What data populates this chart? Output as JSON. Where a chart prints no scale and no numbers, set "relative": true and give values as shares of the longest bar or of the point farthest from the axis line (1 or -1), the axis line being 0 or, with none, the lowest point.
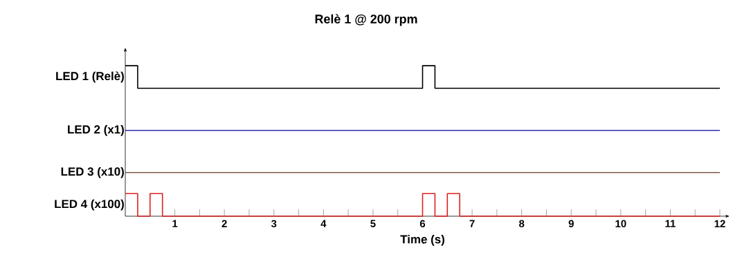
{
  "chart_data": {
    "type": "step",
    "title": "Relè 1 @ 200 rpm",
    "xlabel": "Time (s)",
    "relative": true,
    "xlim": [
      0,
      12
    ],
    "xticks": [
      {
        "value": 0.5,
        "label": null
      },
      1,
      {
        "value": 1.5,
        "label": null
      },
      2,
      {
        "value": 2.5,
        "label": null
      },
      3,
      {
        "value": 3.5,
        "label": null
      },
      4,
      {
        "value": 4.5,
        "label": null
      },
      5,
      {
        "value": 5.5,
        "label": null
      },
      6,
      {
        "value": 6.5,
        "label": null
      },
      7,
      {
        "value": 7.5,
        "label": null
      },
      8,
      {
        "value": 8.5,
        "label": null
      },
      9,
      {
        "value": 9.5,
        "label": null
      },
      10,
      {
        "value": 10.5,
        "label": null
      },
      11,
      {
        "value": 11.5,
        "label": null
      },
      12
    ],
    "series": [
      {
        "name": "LED 1 (Relè)",
        "color": "#000000",
        "x": [
          0,
          0.25,
          6,
          6.25,
          12
        ],
        "values": [
          1,
          0.85,
          1,
          0.85,
          0.85
        ]
      },
      {
        "name": "LED 2 (x1)",
        "color": "#2b2bb0",
        "x": [
          0,
          12
        ],
        "values": [
          0.57,
          0.57
        ]
      },
      {
        "name": "LED 3 (x10)",
        "color": "#7a5c4a",
        "x": [
          0,
          12
        ],
        "values": [
          0.29,
          0.29
        ]
      },
      {
        "name": "LED 4 (x100)",
        "color": "#e02020",
        "x": [
          0,
          0.25,
          0.5,
          0.75,
          6,
          6.25,
          6.5,
          6.75,
          12
        ],
        "values": [
          0.15,
          0,
          0.15,
          0,
          0.15,
          0,
          0.15,
          0,
          0
        ]
      }
    ],
    "grid": false,
    "legend": false,
    "marker": "none",
    "line_style": "solid"
  }
}
